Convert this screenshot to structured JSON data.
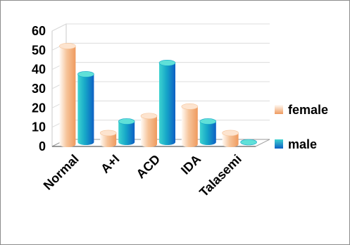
{
  "chart_data": {
    "type": "bar",
    "style": "3d-cylinder",
    "categories": [
      "Normal",
      "A+I",
      "ACD",
      "IDA",
      "Talasemi"
    ],
    "series": [
      {
        "name": "female",
        "values": [
          52,
          6,
          15,
          20,
          6
        ],
        "color": "#f2a56e"
      },
      {
        "name": "male",
        "values": [
          36,
          11,
          42,
          11,
          0
        ],
        "color": "#1aa3c2"
      }
    ],
    "ylim": [
      0,
      60
    ],
    "yticks": [
      0,
      10,
      20,
      30,
      40,
      50,
      60
    ],
    "title": "",
    "xlabel": "",
    "ylabel": "",
    "grid": true,
    "legend_position": "right"
  }
}
